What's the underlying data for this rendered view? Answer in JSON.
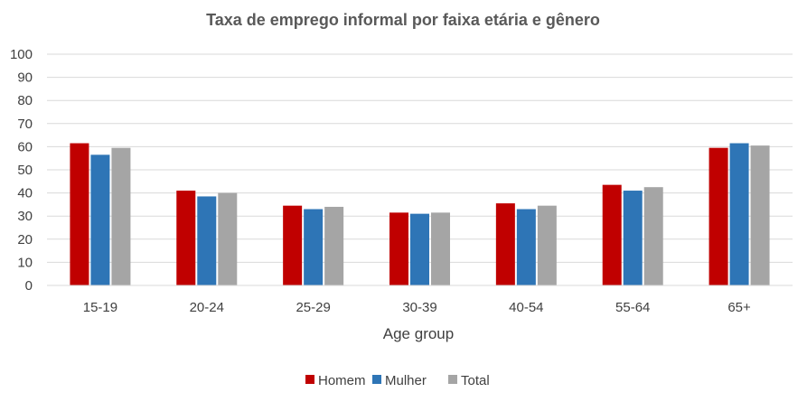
{
  "chart_data": {
    "type": "bar",
    "title": "Taxa de emprego informal por faixa etária e gênero",
    "xlabel": "Age group",
    "ylabel": "",
    "categories": [
      "15-19",
      "20-24",
      "25-29",
      "30-39",
      "40-54",
      "55-64",
      "65+"
    ],
    "series": [
      {
        "name": "Homem",
        "color": "#C00000",
        "values": [
          61.5,
          41.0,
          34.5,
          31.5,
          35.5,
          43.5,
          59.5
        ]
      },
      {
        "name": "Mulher",
        "color": "#2E75B6",
        "values": [
          56.5,
          38.5,
          33.0,
          31.0,
          33.0,
          41.0,
          61.5
        ]
      },
      {
        "name": "Total",
        "color": "#A5A5A5",
        "values": [
          59.5,
          40.0,
          34.0,
          31.5,
          34.5,
          42.5,
          60.5
        ]
      }
    ],
    "ylim": [
      0,
      100
    ],
    "yticks": [
      0,
      10,
      20,
      30,
      40,
      50,
      60,
      70,
      80,
      90,
      100
    ],
    "grid": true,
    "legend_position": "bottom"
  }
}
